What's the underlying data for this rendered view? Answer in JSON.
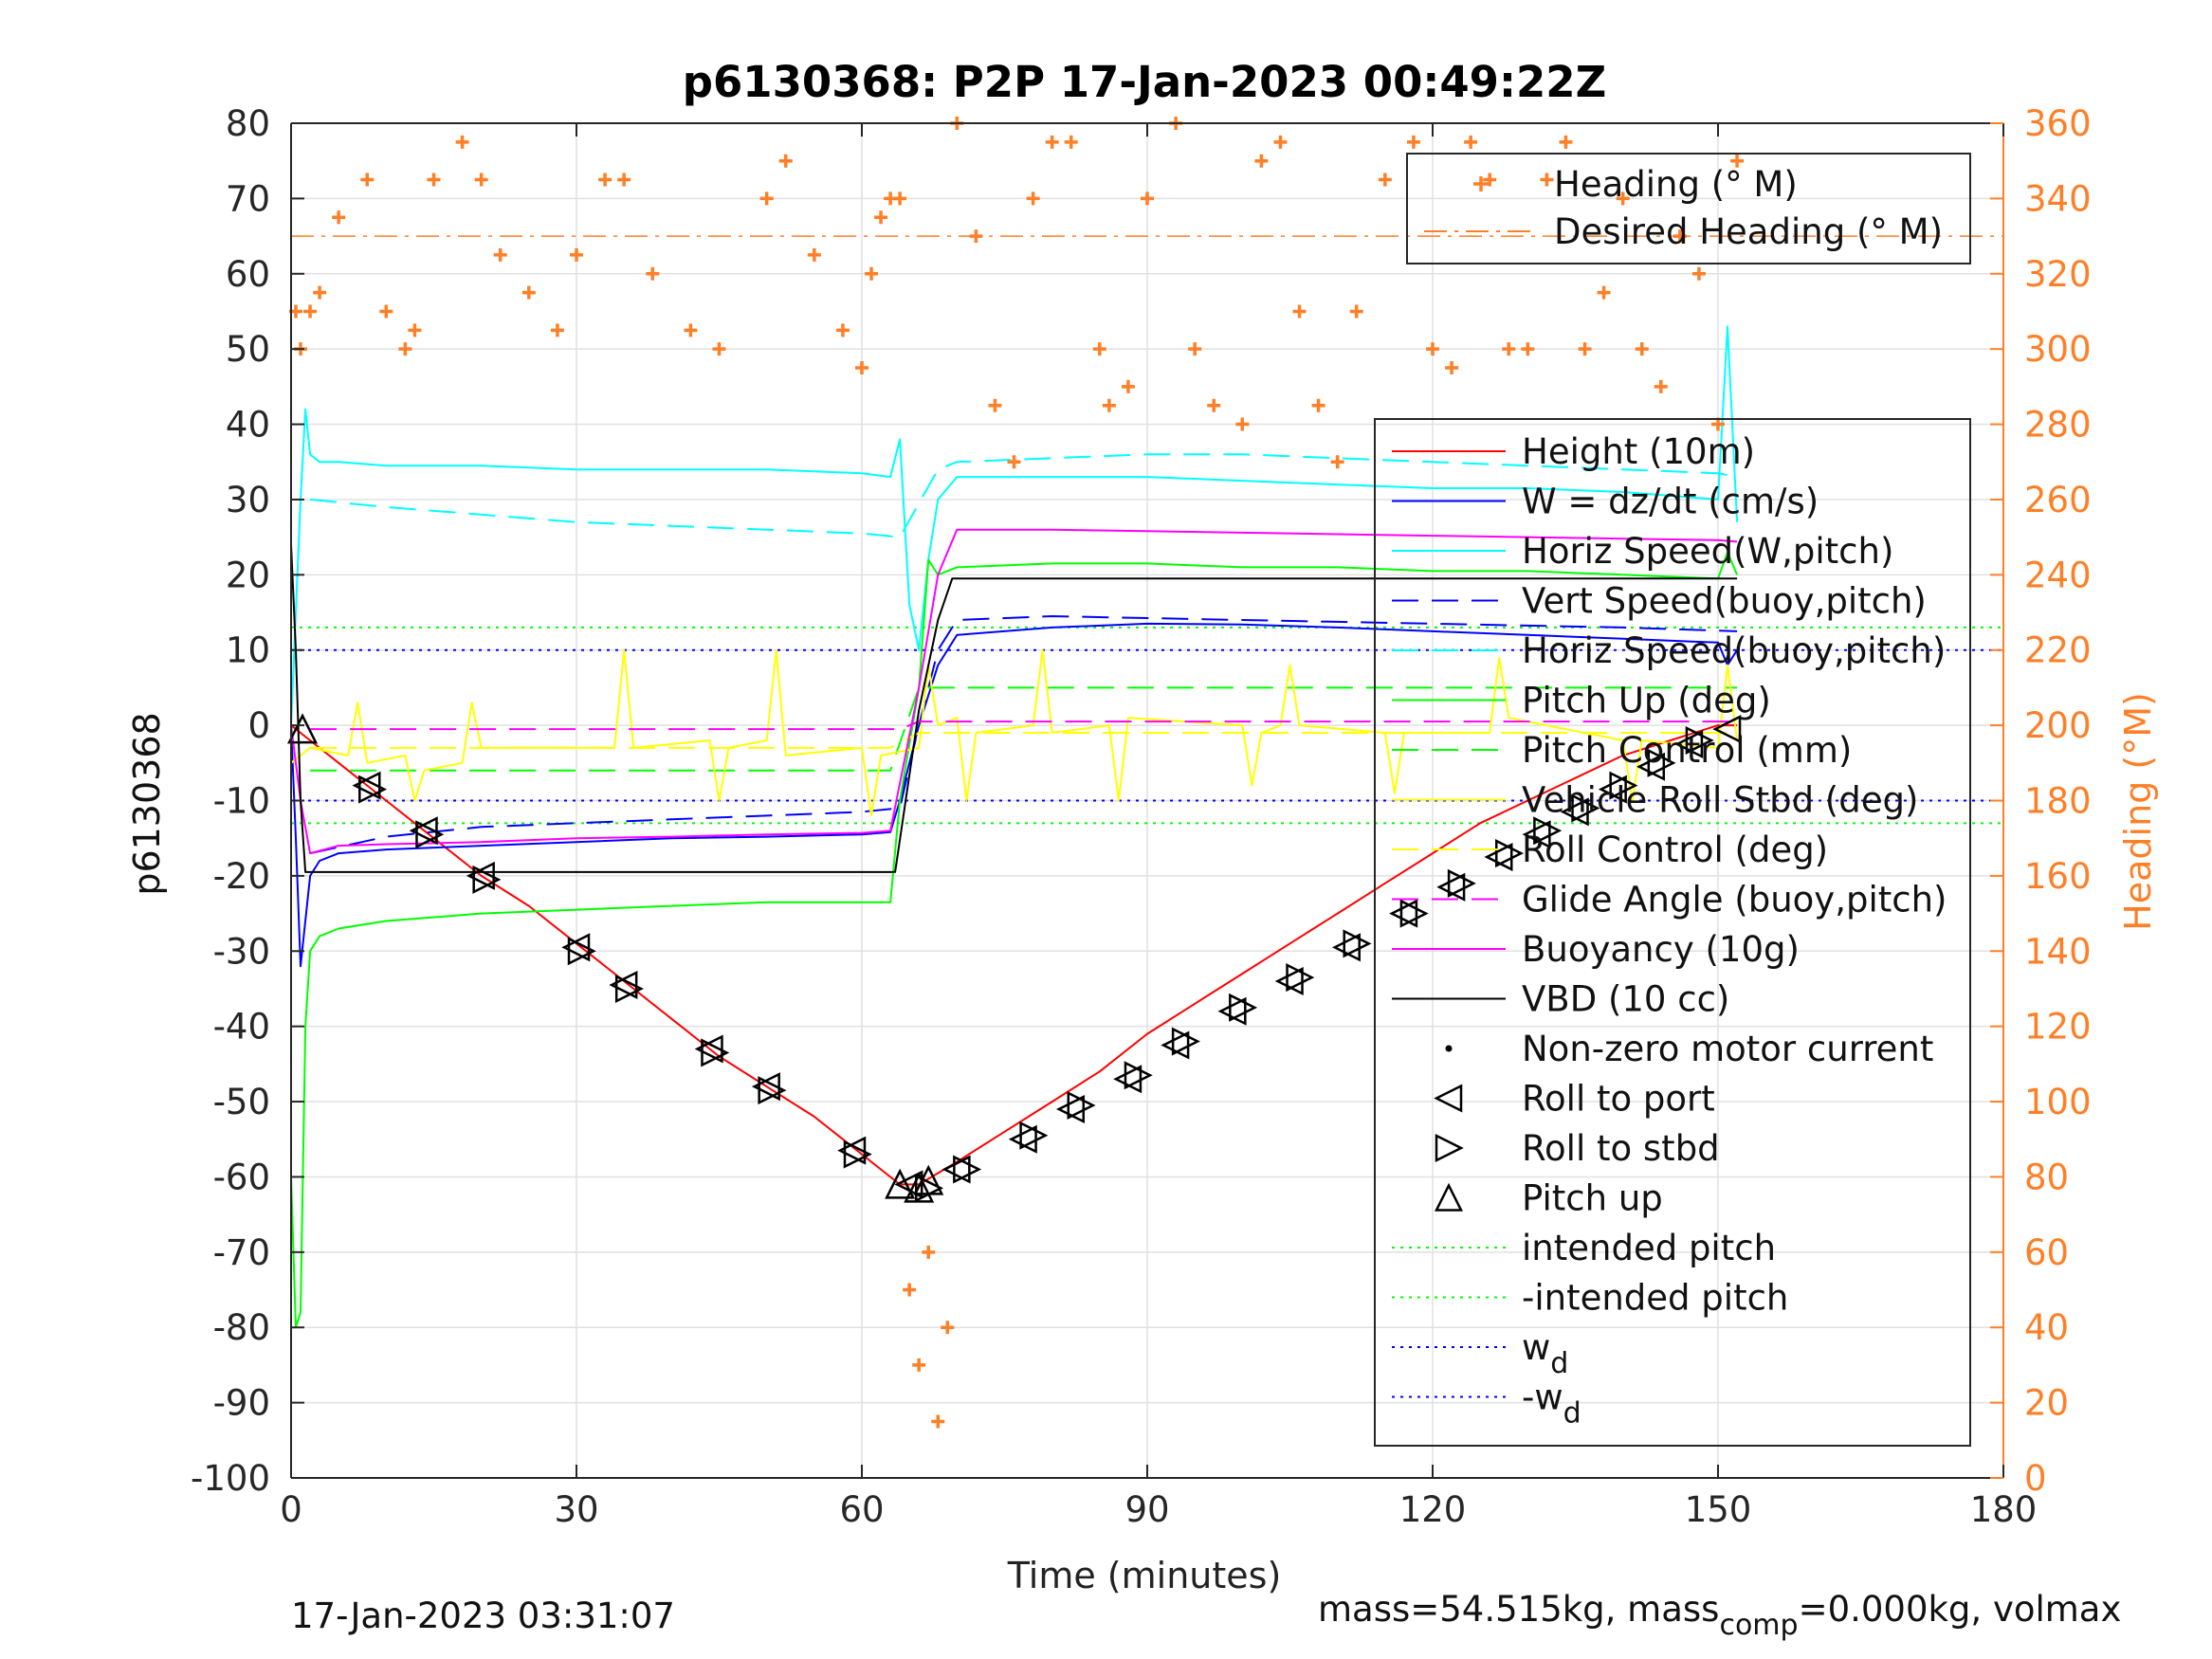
{
  "chart_data": {
    "type": "line",
    "title": "p6130368: P2P 17-Jan-2023 00:49:22Z",
    "xlabel": "Time (minutes)",
    "ylabel": "p6130368",
    "ylabel_right": "Heading (°M)",
    "xlim": [
      0,
      180
    ],
    "ylim": [
      -100,
      80
    ],
    "ylim_right": [
      0,
      360
    ],
    "x_ticks": [
      0,
      30,
      60,
      90,
      120,
      150,
      180
    ],
    "y_ticks": [
      80,
      70,
      60,
      50,
      40,
      30,
      20,
      10,
      0,
      -10,
      -20,
      -30,
      -40,
      -50,
      -60,
      -70,
      -80,
      -90,
      -100
    ],
    "y_ticks_right": [
      360,
      340,
      320,
      300,
      280,
      260,
      240,
      220,
      200,
      180,
      160,
      140,
      120,
      100,
      80,
      60,
      40,
      20,
      0
    ],
    "grid": true,
    "right_axis_color": "#ff7f27",
    "footer_left": "17-Jan-2023 03:31:07",
    "footer_right_prefix": "mass=54.515kg, mass",
    "footer_right_sub": "comp",
    "footer_right_suffix": "=0.000kg, volmax",
    "heading_legend": [
      {
        "label": "Heading (° M)",
        "style": "marker",
        "color": "#ff7f27"
      },
      {
        "label": "Desired Heading (° M)",
        "style": "dashdot",
        "color": "#ff7f27"
      }
    ],
    "legend": [
      {
        "label": "Height (10m)",
        "style": "solid",
        "color": "#ff0000"
      },
      {
        "label": "W = dz/dt (cm/s)",
        "style": "solid",
        "color": "#0000ff"
      },
      {
        "label": "Horiz Speed(W,pitch)",
        "style": "solid",
        "color": "#00ffff"
      },
      {
        "label": "Vert Speed(buoy,pitch)",
        "style": "dashed",
        "color": "#0000ff"
      },
      {
        "label": "Horiz Speed(buoy,pitch)",
        "style": "dashed",
        "color": "#00ffff"
      },
      {
        "label": "Pitch Up (deg)",
        "style": "solid",
        "color": "#00ff00"
      },
      {
        "label": "Pitch Control (mm)",
        "style": "dashed",
        "color": "#00ff00"
      },
      {
        "label": "Vehicle Roll Stbd (deg)",
        "style": "solid",
        "color": "#ffff00"
      },
      {
        "label": "Roll Control (deg)",
        "style": "dashed",
        "color": "#ffff00"
      },
      {
        "label": "Glide Angle (buoy,pitch)",
        "style": "dashed",
        "color": "#ff00ff"
      },
      {
        "label": "Buoyancy (10g)",
        "style": "solid",
        "color": "#ff00ff"
      },
      {
        "label": "VBD (10 cc)",
        "style": "solid",
        "color": "#000000"
      },
      {
        "label": "Non-zero motor current",
        "style": "dot",
        "color": "#000000"
      },
      {
        "label": "Roll to port",
        "style": "tri-left",
        "color": "#000000"
      },
      {
        "label": "Roll to stbd",
        "style": "tri-right",
        "color": "#000000"
      },
      {
        "label": "Pitch up",
        "style": "tri-up",
        "color": "#000000"
      },
      {
        "label": "intended pitch",
        "style": "dotted",
        "color": "#00ff00"
      },
      {
        "label": "-intended pitch",
        "style": "dotted",
        "color": "#00ff00"
      },
      {
        "label": "w",
        "sub": "d",
        "style": "dotted",
        "color": "#0000ff"
      },
      {
        "label": "-w",
        "sub": "d",
        "style": "dotted",
        "color": "#0000ff"
      }
    ],
    "series": [
      {
        "name": "Height (10m)",
        "color": "#ff0000",
        "style": "solid",
        "x": [
          0,
          5,
          10,
          15,
          20,
          25,
          30,
          35,
          40,
          45,
          50,
          55,
          60,
          64,
          66,
          70,
          75,
          80,
          85,
          90,
          95,
          100,
          105,
          110,
          115,
          120,
          125,
          130,
          135,
          140,
          145,
          150,
          152
        ],
        "y": [
          0,
          -5,
          -10,
          -15,
          -20,
          -24,
          -29,
          -34,
          -39,
          -44,
          -48,
          -52,
          -57,
          -61,
          -61,
          -58,
          -54,
          -50,
          -46,
          -41,
          -37,
          -33,
          -29,
          -25,
          -21,
          -17,
          -13,
          -10,
          -7,
          -4,
          -2,
          0,
          0
        ]
      },
      {
        "name": "W = dz/dt (cm/s)",
        "color": "#0000ff",
        "style": "solid",
        "x": [
          0,
          0.5,
          1,
          2,
          3,
          5,
          10,
          20,
          30,
          40,
          50,
          60,
          63,
          64,
          66,
          68,
          70,
          80,
          90,
          100,
          110,
          120,
          130,
          140,
          150,
          151,
          152
        ],
        "y": [
          0,
          -15,
          -32,
          -20,
          -18,
          -17,
          -16.5,
          -16,
          -15.5,
          -15,
          -14.8,
          -14.5,
          -14.2,
          -10,
          0,
          8,
          12,
          13,
          13.5,
          13.4,
          13,
          12.5,
          12,
          11.5,
          11,
          8,
          10
        ]
      },
      {
        "name": "Horiz Speed(W,pitch)",
        "color": "#00ffff",
        "style": "solid",
        "x": [
          0,
          1,
          1.5,
          2,
          3,
          5,
          10,
          20,
          30,
          40,
          50,
          60,
          63,
          64,
          65,
          66,
          67,
          68,
          70,
          80,
          90,
          100,
          110,
          120,
          130,
          140,
          150,
          151,
          152
        ],
        "y": [
          0,
          30,
          42,
          36,
          35,
          35,
          34.5,
          34.5,
          34,
          34,
          34,
          33.5,
          33,
          38,
          16,
          10,
          22,
          30,
          33,
          33,
          33,
          32.5,
          32,
          31.5,
          31.5,
          31,
          30,
          53,
          27
        ]
      },
      {
        "name": "Vert Speed(buoy,pitch)",
        "color": "#0000ff",
        "style": "dashed",
        "x": [
          2,
          10,
          20,
          30,
          40,
          50,
          60,
          64,
          66,
          68,
          70,
          80,
          100,
          120,
          140,
          152
        ],
        "y": [
          -17,
          -14.8,
          -13.5,
          -13,
          -12.5,
          -12,
          -11.5,
          -11,
          0,
          10,
          14,
          14.5,
          14,
          13.5,
          13,
          12.5
        ]
      },
      {
        "name": "Horiz Speed(buoy,pitch)",
        "color": "#00ffff",
        "style": "dashed",
        "x": [
          2,
          10,
          20,
          30,
          40,
          50,
          60,
          64,
          68,
          70,
          80,
          90,
          100,
          110,
          120,
          130,
          140,
          150,
          152
        ],
        "y": [
          30,
          29,
          28,
          27,
          26.5,
          26,
          25.5,
          25,
          34,
          35,
          35.5,
          36,
          36,
          35.5,
          35,
          34.5,
          34,
          33.5,
          33
        ]
      },
      {
        "name": "Pitch Up (deg)",
        "color": "#00ff00",
        "style": "solid",
        "x": [
          0,
          0.5,
          1,
          1.5,
          2,
          3,
          5,
          10,
          20,
          30,
          40,
          50,
          60,
          63,
          64,
          66,
          67,
          68,
          70,
          80,
          90,
          100,
          110,
          120,
          130,
          140,
          150,
          151,
          152
        ],
        "y": [
          -60,
          -80,
          -78,
          -40,
          -30,
          -28,
          -27,
          -26,
          -25,
          -24.5,
          -24,
          -23.5,
          -23.5,
          -23.5,
          -10,
          5,
          22,
          20,
          21,
          21.5,
          21.5,
          21,
          21,
          20.5,
          20.5,
          20,
          19.5,
          23,
          20
        ]
      },
      {
        "name": "Pitch Control (mm)",
        "color": "#00ff00",
        "style": "dashed",
        "x": [
          2,
          63,
          66,
          152
        ],
        "y": [
          -6,
          -6,
          5,
          5
        ]
      },
      {
        "name": "Vehicle Roll Stbd (deg)",
        "color": "#ffff00",
        "style": "solid",
        "x": [
          0,
          1,
          2,
          6,
          7,
          8,
          12,
          13,
          14,
          18,
          19,
          20,
          30,
          34,
          35,
          36,
          44,
          45,
          46,
          50,
          51,
          52,
          60,
          61,
          62,
          66,
          67,
          68,
          70,
          71,
          72,
          78,
          79,
          80,
          86,
          87,
          88,
          100,
          101,
          102,
          104,
          105,
          106,
          115,
          116,
          117,
          126,
          127,
          128,
          140,
          141,
          142,
          150,
          151,
          152
        ],
        "y": [
          -5,
          -4,
          -3,
          -4,
          3,
          -5,
          -4,
          -10,
          -6,
          -5,
          3,
          -3,
          -3,
          -3,
          10,
          -3,
          -2,
          -10,
          -3,
          -2,
          10,
          -4,
          -3,
          -12,
          -4,
          -3,
          8,
          0,
          1,
          -10,
          -1,
          0,
          10,
          -1,
          0,
          -10,
          1,
          0,
          -8,
          -1,
          0,
          8,
          0,
          -1,
          -9,
          -1,
          -1,
          9,
          1,
          -2,
          -10,
          -2,
          -3,
          8,
          -2
        ]
      },
      {
        "name": "Roll Control (deg)",
        "color": "#ffff00",
        "style": "dashed",
        "x": [
          2,
          63,
          66,
          152
        ],
        "y": [
          -3,
          -3,
          -1,
          -1
        ]
      },
      {
        "name": "Glide Angle (buoy,pitch)",
        "color": "#ff00ff",
        "style": "dashed",
        "x": [
          2,
          60,
          64,
          66,
          152
        ],
        "y": [
          -0.5,
          -0.5,
          -0.5,
          0.5,
          0.5
        ]
      },
      {
        "name": "Buoyancy (10g)",
        "color": "#ff00ff",
        "style": "solid",
        "x": [
          0,
          1,
          2,
          5,
          10,
          20,
          30,
          40,
          50,
          60,
          63,
          66,
          68,
          70,
          80,
          90,
          100,
          110,
          120,
          130,
          140,
          150,
          152
        ],
        "y": [
          0,
          -10,
          -17,
          -16,
          -15.8,
          -15.5,
          -15,
          -14.8,
          -14.5,
          -14.3,
          -14,
          5,
          20,
          26,
          26,
          25.8,
          25.6,
          25.4,
          25.2,
          25,
          24.8,
          24.6,
          24.4
        ]
      },
      {
        "name": "VBD (10 cc)",
        "color": "#000000",
        "style": "solid",
        "x": [
          0,
          0.5,
          1,
          1.5,
          3,
          60,
          63.5,
          66,
          68,
          69.5,
          150,
          151,
          152
        ],
        "y": [
          24,
          10,
          -10,
          -19.5,
          -19.5,
          -19.5,
          -19.5,
          2,
          14,
          19.5,
          19.5,
          19.5,
          19.5
        ]
      }
    ],
    "heading_series": {
      "name": "Heading (° M)",
      "color": "#ff7f27",
      "axis": "right",
      "x": [
        0.5,
        1,
        2,
        3,
        5,
        8,
        10,
        12,
        13,
        15,
        18,
        20,
        22,
        25,
        28,
        30,
        33,
        35,
        38,
        42,
        45,
        50,
        52,
        55,
        58,
        60,
        61,
        62,
        63,
        64,
        65,
        66,
        67,
        68,
        69,
        70,
        72,
        74,
        76,
        78,
        80,
        82,
        85,
        86,
        88,
        90,
        93,
        95,
        97,
        100,
        102,
        104,
        106,
        108,
        110,
        112,
        115,
        118,
        120,
        122,
        124,
        126,
        128,
        130,
        132,
        134,
        136,
        138,
        140,
        142,
        144,
        146,
        148,
        150,
        152
      ],
      "y": [
        310,
        300,
        310,
        315,
        335,
        345,
        310,
        300,
        305,
        345,
        355,
        345,
        325,
        315,
        305,
        325,
        345,
        345,
        320,
        305,
        300,
        340,
        350,
        325,
        305,
        295,
        320,
        335,
        340,
        340,
        50,
        30,
        60,
        15,
        40,
        360,
        330,
        285,
        270,
        340,
        355,
        355,
        300,
        285,
        290,
        340,
        360,
        300,
        285,
        280,
        350,
        355,
        310,
        285,
        270,
        310,
        345,
        355,
        300,
        295,
        355,
        345,
        300,
        300,
        345,
        355,
        300,
        315,
        340,
        300,
        290,
        330,
        320,
        280,
        350
      ]
    },
    "desired_heading": 330,
    "roll_port_markers": {
      "x": [
        8,
        14,
        20,
        30,
        35,
        44,
        50,
        59,
        65,
        70,
        77,
        82,
        88,
        93,
        99,
        105,
        111,
        117,
        122,
        127,
        131,
        135,
        139,
        143,
        147,
        151
      ],
      "y": [
        -8,
        -14,
        -20,
        -29.5,
        -34.5,
        -43,
        -48,
        -56.5,
        -61,
        -59,
        -55,
        -51,
        -47,
        -42.5,
        -38,
        -34,
        -29.5,
        -25,
        -21.5,
        -17.5,
        -14.5,
        -11.5,
        -8.5,
        -5.5,
        -2.5,
        -0.5
      ]
    },
    "roll_stbd_markers": {
      "x": [
        8.5,
        14.5,
        20.5,
        30.5,
        35.5,
        44.5,
        50.5,
        59.5,
        67,
        71,
        78,
        83,
        89,
        94,
        100,
        106,
        112,
        118,
        123,
        128,
        132,
        136,
        140,
        144,
        148
      ],
      "y": [
        -8.5,
        -14.5,
        -20.5,
        -30,
        -35,
        -43.5,
        -48.5,
        -57,
        -61.5,
        -59,
        -54.5,
        -50.5,
        -46.5,
        -42,
        -37.5,
        -33.5,
        -29,
        -25,
        -21,
        -17,
        -14,
        -11,
        -8,
        -5,
        -2
      ]
    },
    "pitch_up_markers": {
      "x": [
        1.2,
        64,
        66,
        67
      ],
      "y": [
        -0.5,
        -61,
        -61.5,
        -60.5
      ]
    },
    "intended_pitch": 13,
    "w_d": 10
  }
}
